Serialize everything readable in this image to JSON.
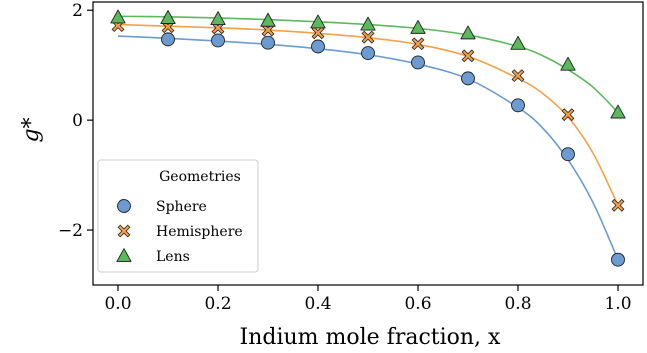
{
  "chart_data": {
    "type": "scatter",
    "xlabel": "Indium mole fraction, x",
    "ylabel": "g*",
    "xlim": [
      -0.05,
      1.05
    ],
    "ylim": [
      -3.0,
      2.15
    ],
    "x_ticks": [
      0.0,
      0.2,
      0.4,
      0.6,
      0.8,
      1.0
    ],
    "x_tick_labels": [
      "0.0",
      "0.2",
      "0.4",
      "0.6",
      "0.8",
      "1.0"
    ],
    "y_ticks": [
      2,
      0,
      -2
    ],
    "y_tick_labels": [
      "2",
      "0",
      "−2"
    ],
    "grid": false,
    "legend": {
      "title": "Geometries",
      "placement": "lower-left"
    },
    "series": [
      {
        "name": "Sphere",
        "marker": "circle",
        "color": "#6b9bd1",
        "x": [
          0.1,
          0.2,
          0.3,
          0.4,
          0.5,
          0.6,
          0.7,
          0.8,
          0.9,
          1.0
        ],
        "y": [
          1.47,
          1.45,
          1.41,
          1.34,
          1.22,
          1.05,
          0.76,
          0.27,
          -0.62,
          -2.54
        ],
        "fit_x": [
          0.0,
          0.1,
          0.2,
          0.3,
          0.4,
          0.5,
          0.6,
          0.7,
          0.8,
          0.85,
          0.9,
          0.95,
          1.0
        ],
        "fit_y": [
          1.53,
          1.49,
          1.44,
          1.38,
          1.3,
          1.19,
          1.02,
          0.75,
          0.23,
          -0.15,
          -0.72,
          -1.5,
          -2.54
        ]
      },
      {
        "name": "Hemisphere",
        "marker": "x",
        "color": "#f5a04a",
        "x": [
          0.0,
          0.1,
          0.2,
          0.3,
          0.4,
          0.5,
          0.6,
          0.7,
          0.8,
          0.9,
          1.0
        ],
        "y": [
          1.72,
          1.7,
          1.68,
          1.64,
          1.59,
          1.51,
          1.39,
          1.17,
          0.81,
          0.1,
          -1.55
        ],
        "fit_x": [
          0.0,
          0.1,
          0.2,
          0.3,
          0.4,
          0.5,
          0.6,
          0.7,
          0.8,
          0.85,
          0.9,
          0.95,
          1.0
        ],
        "fit_y": [
          1.74,
          1.71,
          1.68,
          1.64,
          1.58,
          1.5,
          1.38,
          1.16,
          0.76,
          0.48,
          0.06,
          -0.6,
          -1.55
        ]
      },
      {
        "name": "Lens",
        "marker": "triangle",
        "color": "#5cb85c",
        "x": [
          0.0,
          0.1,
          0.2,
          0.3,
          0.4,
          0.5,
          0.6,
          0.7,
          0.8,
          0.9,
          1.0
        ],
        "y": [
          1.87,
          1.86,
          1.84,
          1.81,
          1.78,
          1.74,
          1.68,
          1.58,
          1.39,
          1.01,
          0.14
        ],
        "fit_x": [
          0.0,
          0.1,
          0.2,
          0.3,
          0.4,
          0.5,
          0.6,
          0.7,
          0.8,
          0.85,
          0.9,
          0.95,
          1.0
        ],
        "fit_y": [
          1.89,
          1.88,
          1.86,
          1.83,
          1.79,
          1.74,
          1.67,
          1.55,
          1.34,
          1.17,
          0.92,
          0.6,
          0.14
        ]
      }
    ]
  }
}
